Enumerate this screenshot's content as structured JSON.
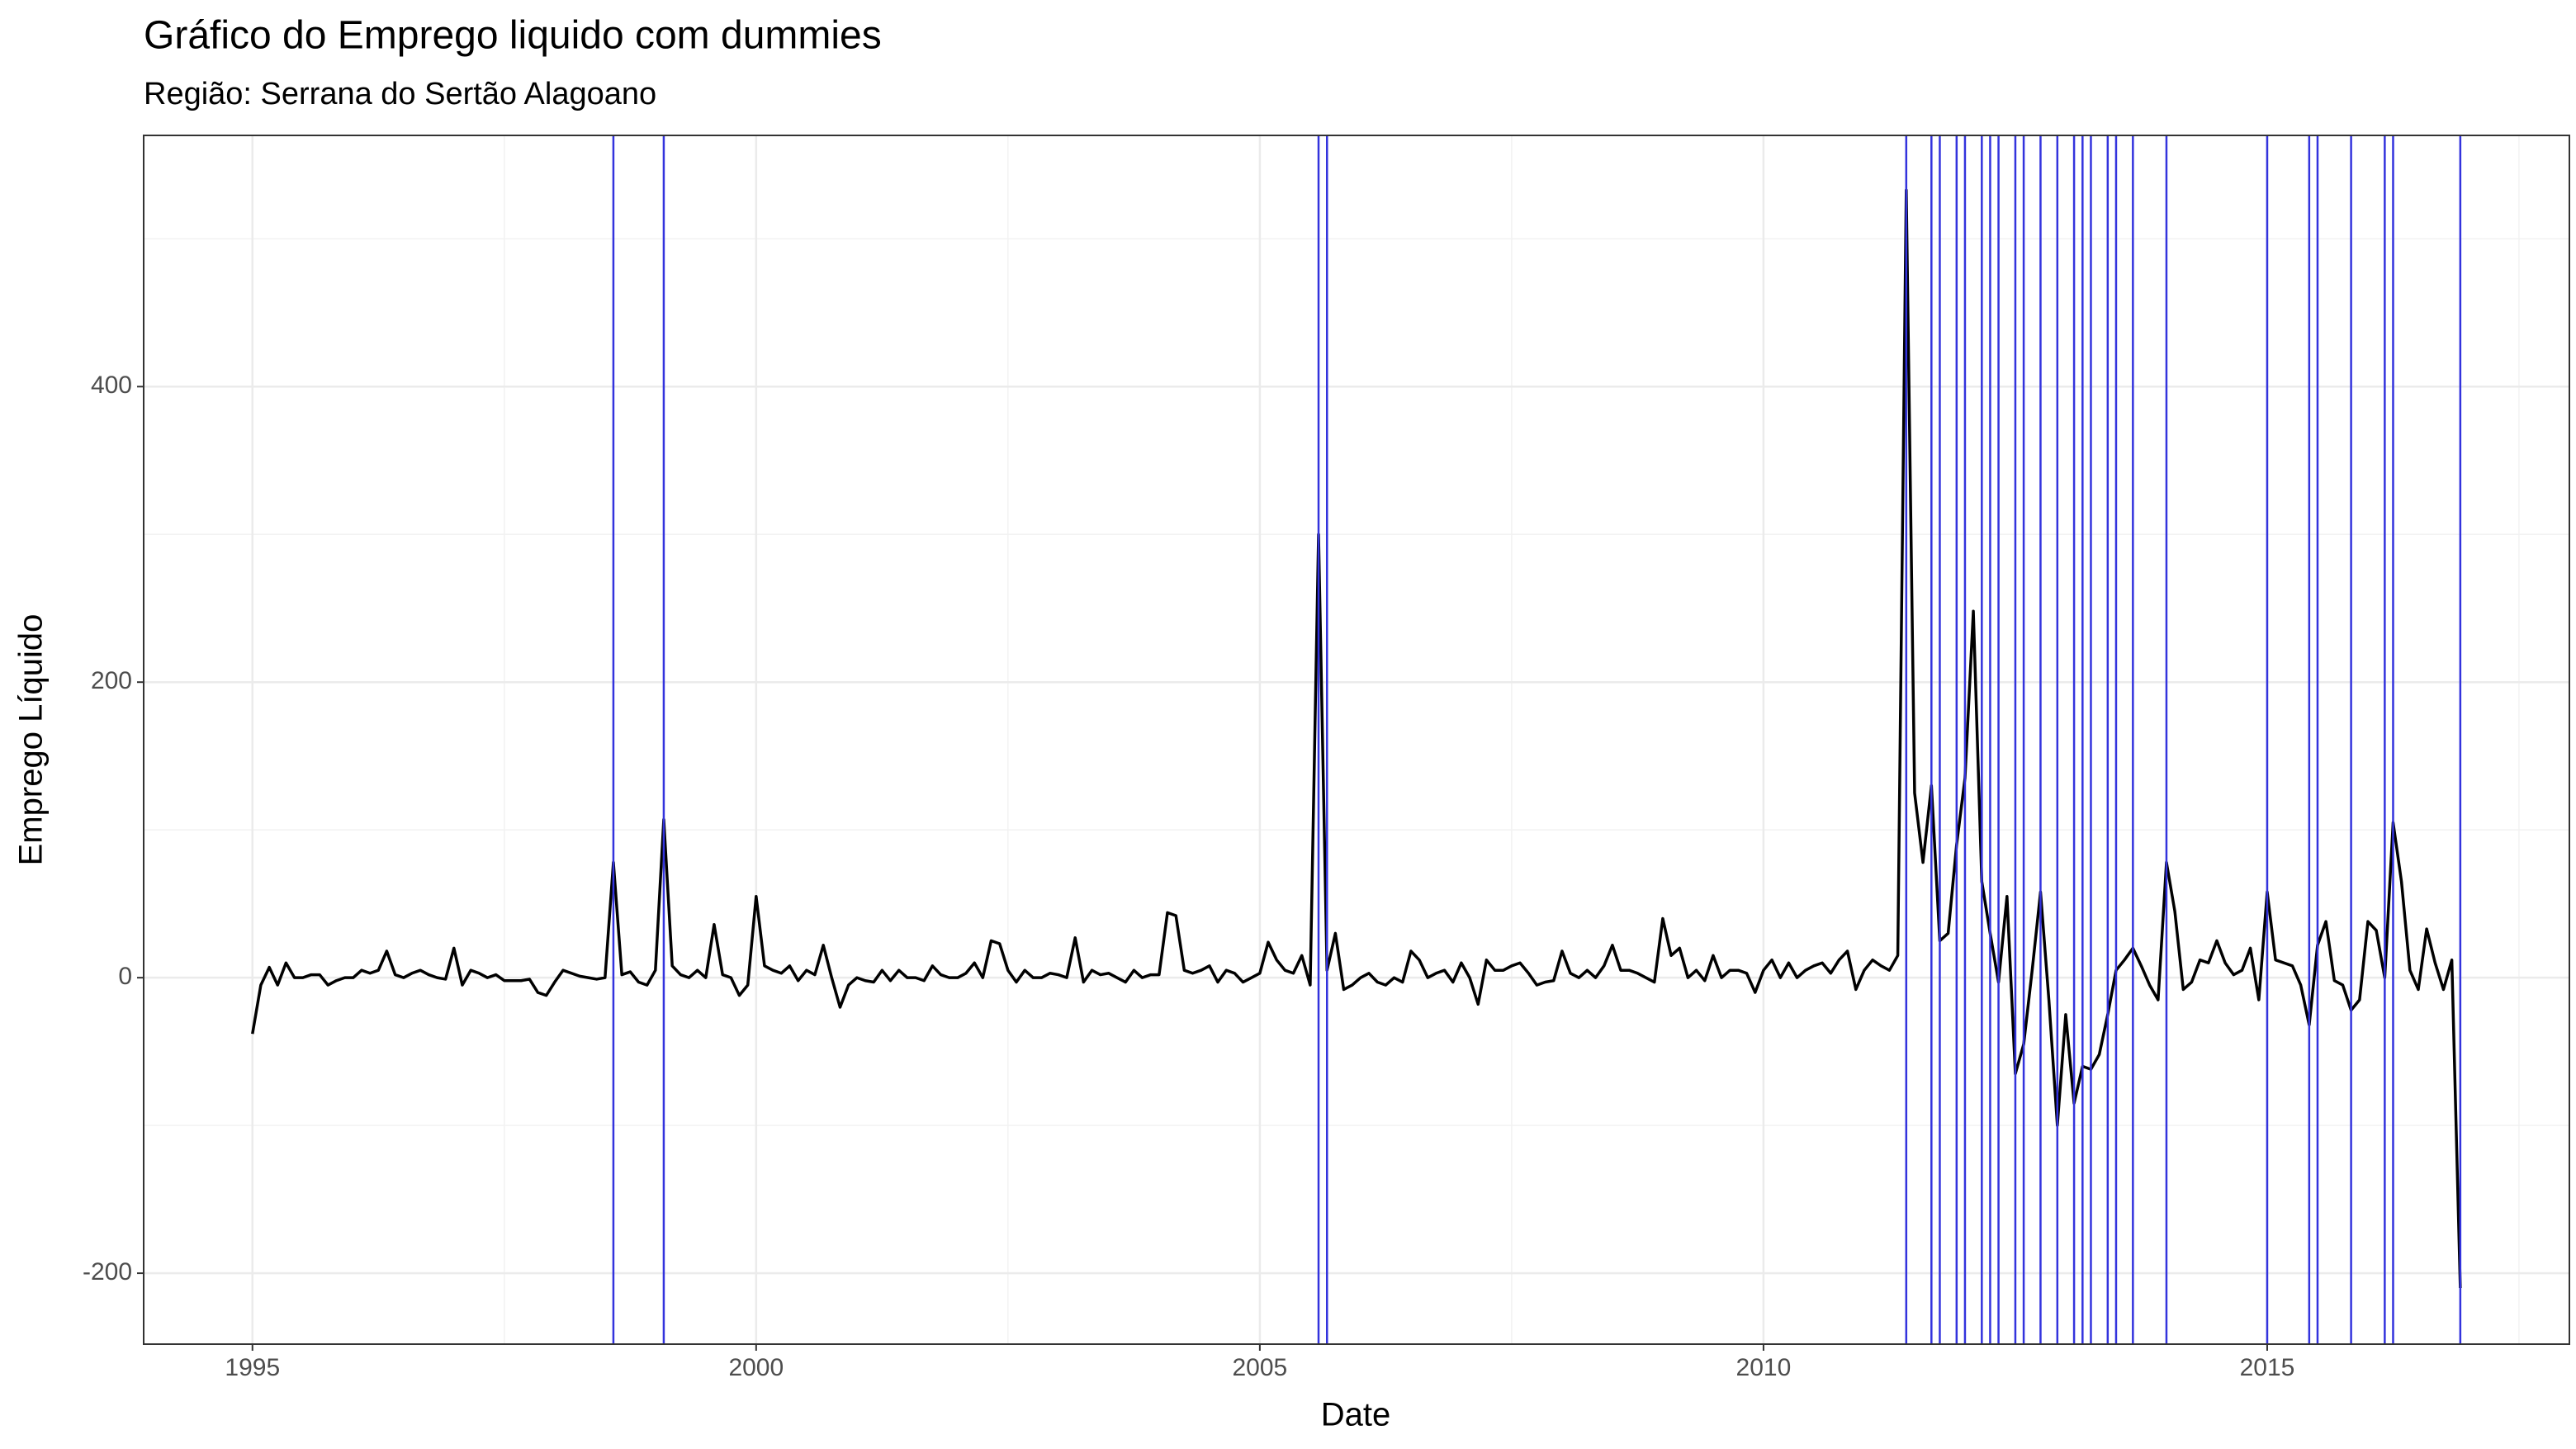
{
  "chart_data": {
    "type": "line",
    "title": "Gráfico do Emprego liquido com dummies",
    "subtitle": "Região: Serrana do Sertão Alagoano",
    "x_label": "Date",
    "y_label": "Emprego Líquido",
    "xlim": [
      1993.92,
      2018.0
    ],
    "ylim": [
      -248,
      570
    ],
    "xticks": [
      1995,
      2000,
      2005,
      2010,
      2015
    ],
    "yticks": [
      -200,
      0,
      200,
      400
    ],
    "grid": true,
    "x": [
      1995,
      1995.083,
      1995.167,
      1995.25,
      1995.333,
      1995.417,
      1995.5,
      1995.583,
      1995.667,
      1995.75,
      1995.833,
      1995.917,
      1996,
      1996.083,
      1996.167,
      1996.25,
      1996.333,
      1996.417,
      1996.5,
      1996.583,
      1996.667,
      1996.75,
      1996.833,
      1996.917,
      1997,
      1997.083,
      1997.167,
      1997.25,
      1997.333,
      1997.417,
      1997.5,
      1997.583,
      1997.667,
      1997.75,
      1997.833,
      1997.917,
      1998,
      1998.083,
      1998.167,
      1998.25,
      1998.333,
      1998.417,
      1998.5,
      1998.583,
      1998.667,
      1998.75,
      1998.833,
      1998.917,
      1999,
      1999.083,
      1999.167,
      1999.25,
      1999.333,
      1999.417,
      1999.5,
      1999.583,
      1999.667,
      1999.75,
      1999.833,
      1999.917,
      2000,
      2000.083,
      2000.167,
      2000.25,
      2000.333,
      2000.417,
      2000.5,
      2000.583,
      2000.667,
      2000.75,
      2000.833,
      2000.917,
      2001,
      2001.083,
      2001.167,
      2001.25,
      2001.333,
      2001.417,
      2001.5,
      2001.583,
      2001.667,
      2001.75,
      2001.833,
      2001.917,
      2002,
      2002.083,
      2002.167,
      2002.25,
      2002.333,
      2002.417,
      2002.5,
      2002.583,
      2002.667,
      2002.75,
      2002.833,
      2002.917,
      2003,
      2003.083,
      2003.167,
      2003.25,
      2003.333,
      2003.417,
      2003.5,
      2003.583,
      2003.667,
      2003.75,
      2003.833,
      2003.917,
      2004,
      2004.083,
      2004.167,
      2004.25,
      2004.333,
      2004.417,
      2004.5,
      2004.583,
      2004.667,
      2004.75,
      2004.833,
      2004.917,
      2005,
      2005.083,
      2005.167,
      2005.25,
      2005.333,
      2005.417,
      2005.5,
      2005.583,
      2005.667,
      2005.75,
      2005.833,
      2005.917,
      2006,
      2006.083,
      2006.167,
      2006.25,
      2006.333,
      2006.417,
      2006.5,
      2006.583,
      2006.667,
      2006.75,
      2006.833,
      2006.917,
      2007,
      2007.083,
      2007.167,
      2007.25,
      2007.333,
      2007.417,
      2007.5,
      2007.583,
      2007.667,
      2007.75,
      2007.833,
      2007.917,
      2008,
      2008.083,
      2008.167,
      2008.25,
      2008.333,
      2008.417,
      2008.5,
      2008.583,
      2008.667,
      2008.75,
      2008.833,
      2008.917,
      2009,
      2009.083,
      2009.167,
      2009.25,
      2009.333,
      2009.417,
      2009.5,
      2009.583,
      2009.667,
      2009.75,
      2009.833,
      2009.917,
      2010,
      2010.083,
      2010.167,
      2010.25,
      2010.333,
      2010.417,
      2010.5,
      2010.583,
      2010.667,
      2010.75,
      2010.833,
      2010.917,
      2011,
      2011.083,
      2011.167,
      2011.25,
      2011.333,
      2011.417,
      2011.5,
      2011.583,
      2011.667,
      2011.75,
      2011.833,
      2011.917,
      2012,
      2012.083,
      2012.167,
      2012.25,
      2012.333,
      2012.417,
      2012.5,
      2012.583,
      2012.667,
      2012.75,
      2012.833,
      2012.917,
      2013,
      2013.083,
      2013.167,
      2013.25,
      2013.333,
      2013.417,
      2013.5,
      2013.583,
      2013.667,
      2013.75,
      2013.833,
      2013.917,
      2014,
      2014.083,
      2014.167,
      2014.25,
      2014.333,
      2014.417,
      2014.5,
      2014.583,
      2014.667,
      2014.75,
      2014.833,
      2014.917,
      2015,
      2015.083,
      2015.167,
      2015.25,
      2015.333,
      2015.417,
      2015.5,
      2015.583,
      2015.667,
      2015.75,
      2015.833,
      2015.917,
      2016,
      2016.083,
      2016.167,
      2016.25,
      2016.333,
      2016.417,
      2016.5,
      2016.583,
      2016.667,
      2016.75,
      2016.833,
      2016.917
    ],
    "series": [
      {
        "color": "#000000",
        "values": [
          -38,
          -5,
          7,
          -5,
          10,
          0,
          0,
          2,
          2,
          -5,
          -2,
          0,
          0,
          5,
          3,
          5,
          18,
          2,
          0,
          3,
          5,
          2,
          0,
          -1,
          20,
          -5,
          5,
          3,
          0,
          2,
          -2,
          -2,
          -2,
          -1,
          -10,
          -12,
          -3,
          5,
          3,
          1,
          0,
          -1,
          0,
          78,
          2,
          4,
          -3,
          -5,
          5,
          107,
          8,
          2,
          0,
          5,
          0,
          36,
          2,
          0,
          -12,
          -5,
          55,
          8,
          5,
          3,
          8,
          -2,
          5,
          2,
          22,
          0,
          -20,
          -5,
          0,
          -2,
          -3,
          5,
          -2,
          5,
          0,
          0,
          -2,
          8,
          2,
          0,
          0,
          3,
          10,
          0,
          25,
          23,
          5,
          -3,
          5,
          0,
          0,
          3,
          2,
          0,
          27,
          -3,
          5,
          2,
          3,
          0,
          -3,
          5,
          0,
          2,
          2,
          44,
          42,
          5,
          3,
          5,
          8,
          -3,
          5,
          3,
          -3,
          0,
          3,
          24,
          12,
          5,
          3,
          15,
          -5,
          300,
          5,
          30,
          -8,
          -5,
          0,
          3,
          -3,
          -5,
          0,
          -3,
          18,
          12,
          0,
          3,
          5,
          -3,
          10,
          0,
          -18,
          12,
          5,
          5,
          8,
          10,
          3,
          -5,
          -3,
          -2,
          18,
          3,
          0,
          5,
          0,
          8,
          22,
          5,
          5,
          3,
          0,
          -3,
          40,
          15,
          20,
          0,
          5,
          -2,
          15,
          0,
          5,
          5,
          3,
          -10,
          5,
          12,
          0,
          10,
          0,
          5,
          8,
          10,
          3,
          12,
          18,
          -8,
          5,
          12,
          8,
          5,
          15,
          533,
          125,
          78,
          130,
          25,
          30,
          90,
          135,
          248,
          65,
          30,
          -3,
          55,
          -65,
          -45,
          5,
          58,
          -15,
          -100,
          -25,
          -85,
          -60,
          -62,
          -52,
          -25,
          5,
          12,
          20,
          8,
          -5,
          -15,
          78,
          45,
          -8,
          -3,
          12,
          10,
          25,
          10,
          2,
          5,
          20,
          -15,
          58,
          12,
          10,
          8,
          -5,
          -32,
          22,
          38,
          -2,
          -5,
          -22,
          -15,
          38,
          32,
          0,
          105,
          65,
          5,
          -8,
          33,
          10,
          -8,
          12,
          -210
        ]
      }
    ],
    "dummy_color": "#3333dd",
    "dummies": [
      1998.583,
      1999.083,
      2005.583,
      2005.667,
      2011.417,
      2011.667,
      2011.75,
      2011.917,
      2012,
      2012.167,
      2012.25,
      2012.333,
      2012.5,
      2012.583,
      2012.75,
      2012.917,
      2013.083,
      2013.167,
      2013.25,
      2013.417,
      2013.5,
      2013.667,
      2014,
      2015,
      2015.417,
      2015.5,
      2015.833,
      2016.167,
      2016.25,
      2016.917
    ]
  }
}
